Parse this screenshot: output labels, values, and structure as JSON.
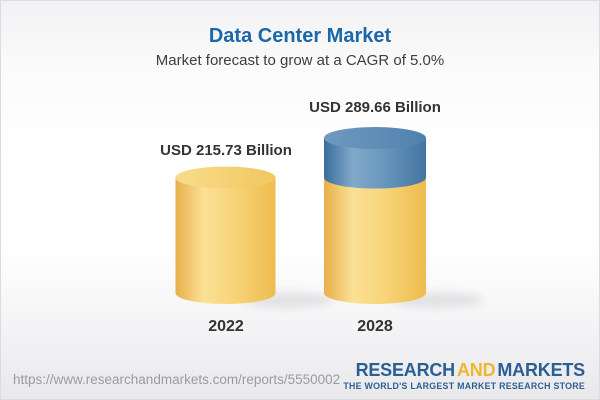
{
  "page": {
    "title": "Data Center Market",
    "subtitle": "Market forecast to grow at a CAGR of 5.0%"
  },
  "chart_data": {
    "type": "bar",
    "variant": "3d-cylinder",
    "title": "Data Center Market",
    "subtitle": "Market forecast to grow at a CAGR of 5.0%",
    "cagr_percent": 5.0,
    "unit": "USD Billion",
    "categories": [
      "2022",
      "2028"
    ],
    "values": [
      215.73,
      289.66
    ],
    "value_labels": [
      "USD 215.73 Billion",
      "USD 289.66 Billion"
    ],
    "ylim": [
      0,
      290
    ],
    "gridlines": false,
    "legend": "none",
    "colors": {
      "base_segment": "#F2C55C",
      "growth_segment": "#4E81AD"
    }
  },
  "footer": {
    "url": "https://www.researchandmarkets.com/reports/5550002",
    "logo": {
      "part1": "RESEARCH",
      "part2": "AND",
      "part3": "MARKETS",
      "tagline": "THE WORLD'S LARGEST MARKET RESEARCH STORE",
      "blue": "#2b5f94",
      "gold": "#efb62f"
    }
  }
}
